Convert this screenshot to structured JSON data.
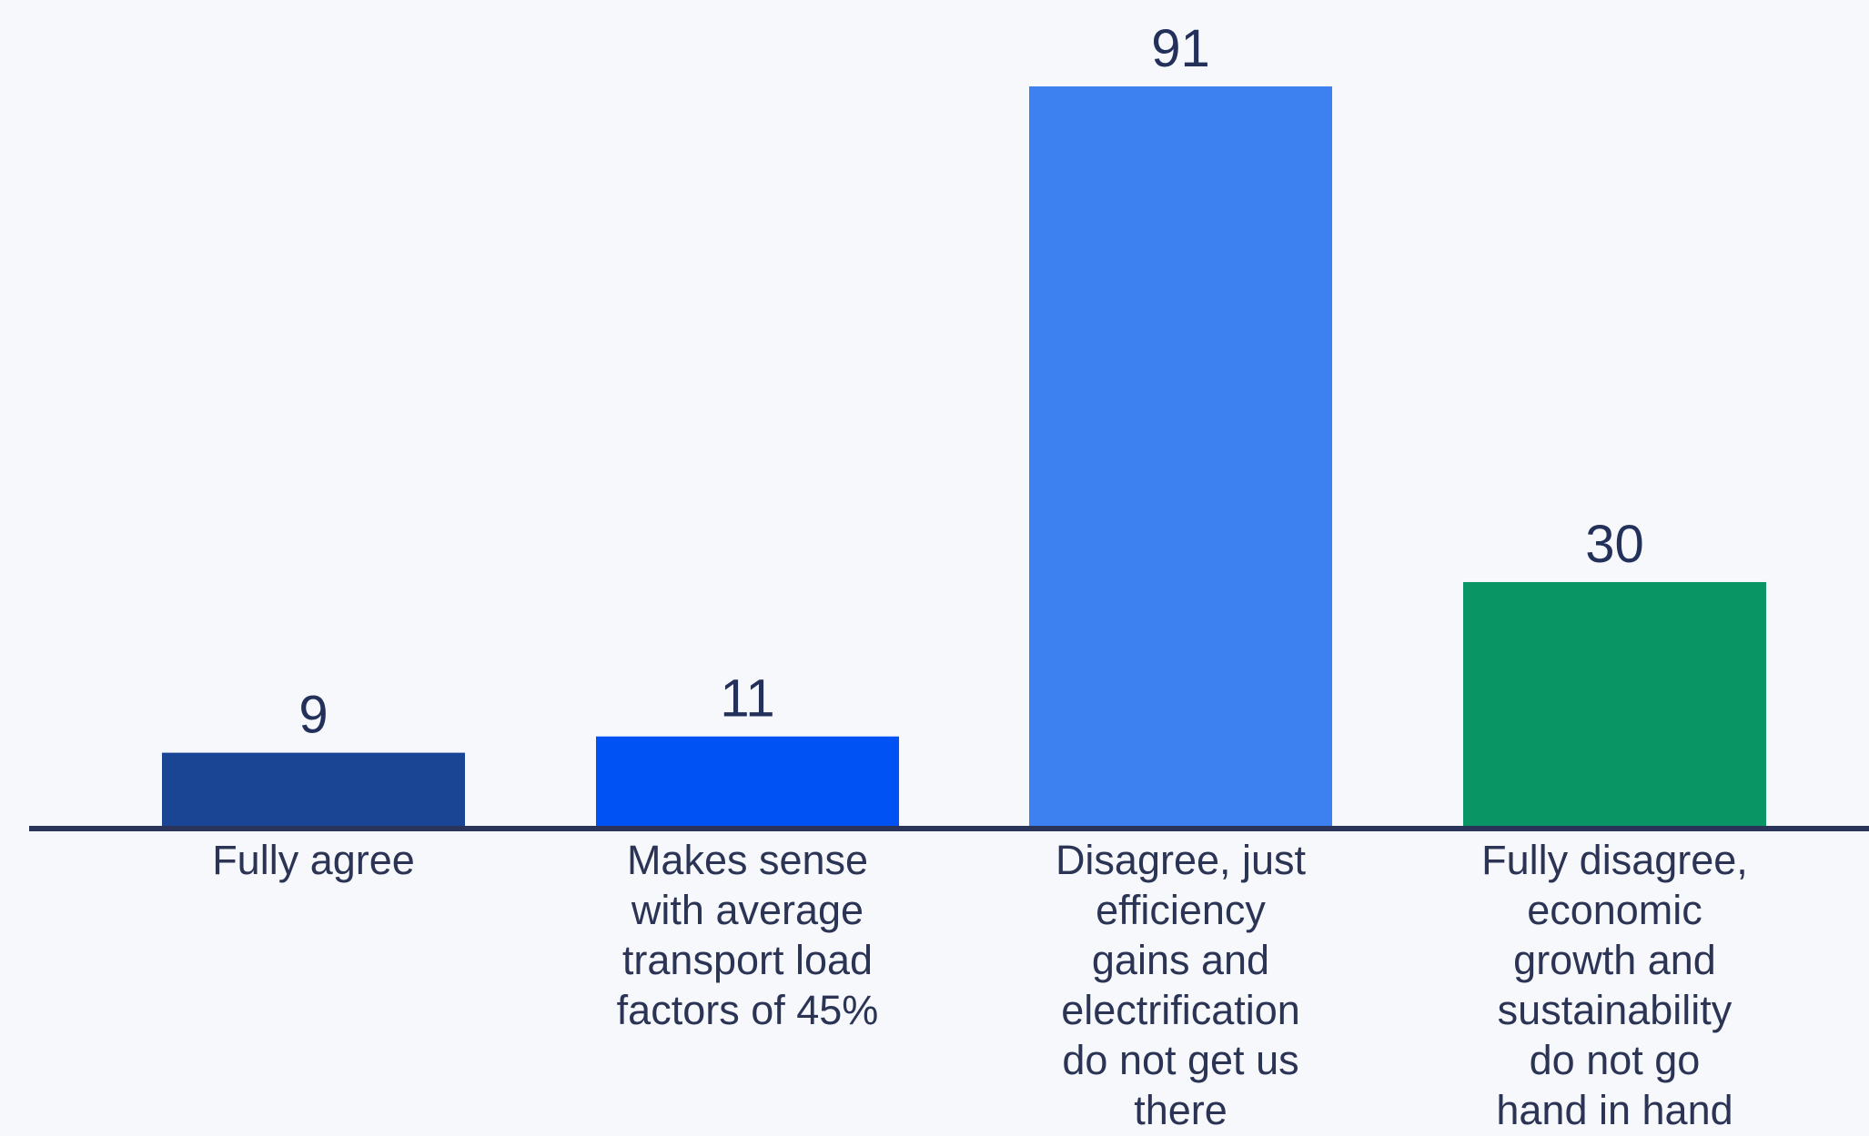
{
  "chart_data": {
    "type": "bar",
    "categories": [
      "Fully agree",
      "Makes sense with average transport load factors of 45%",
      "Disagree, just efficiency gains and electrification do not get us there",
      "Fully disagree, economic growth and sustainability do not go hand in hand"
    ],
    "category_lines": [
      [
        "Fully agree"
      ],
      [
        "Makes sense",
        "with average",
        "transport load",
        "factors of 45%"
      ],
      [
        "Disagree, just",
        "efficiency",
        "gains and",
        "electrification",
        "do not get us",
        "there"
      ],
      [
        "Fully disagree,",
        "economic",
        "growth and",
        "sustainability",
        "do not go",
        "hand in hand"
      ]
    ],
    "values": [
      9,
      11,
      91,
      30
    ],
    "colors": [
      "#1a4494",
      "#0052f5",
      "#3d80f0",
      "#0a9564"
    ],
    "ylim": [
      0,
      91
    ],
    "grid": false,
    "legend": "none",
    "xlabel": "",
    "ylabel": ""
  },
  "colors": {
    "background": "#f6f8fc",
    "axis": "#2a3358",
    "text": "#2b3454"
  }
}
